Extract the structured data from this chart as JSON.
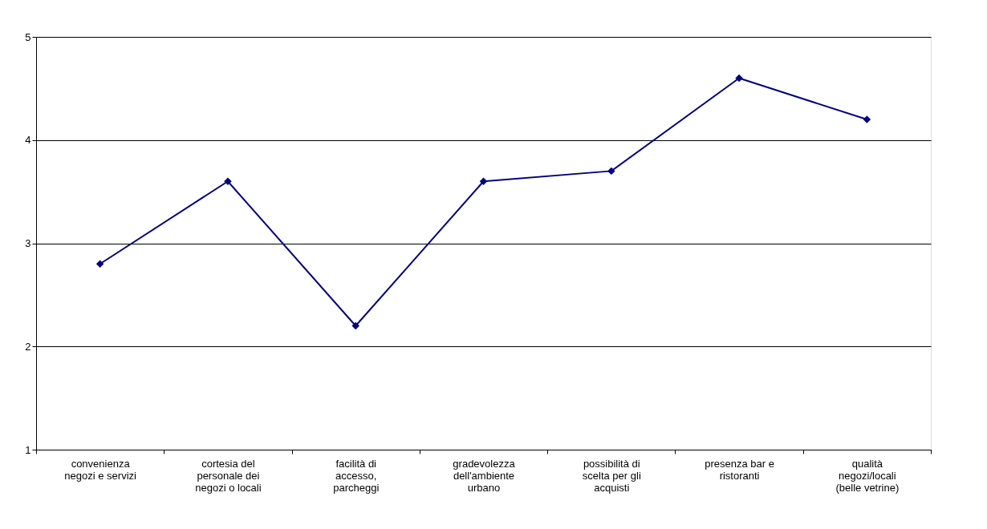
{
  "chart_data": {
    "type": "line",
    "categories": [
      "convenienza negozi e servizi",
      "cortesia del personale dei negozi o locali",
      "facilità di accesso, parcheggi",
      "gradevolezza dell'ambiente urbano",
      "possibilità di scelta per gli acquisti",
      "presenza bar e ristoranti",
      "qualità negozi/locali (belle vetrine)"
    ],
    "series": [
      {
        "color": "#000080",
        "values": [
          2.8,
          3.6,
          2.2,
          3.6,
          3.7,
          4.6,
          4.2
        ]
      }
    ],
    "ylim": [
      1,
      5
    ],
    "yticks": [
      1,
      2,
      3,
      4,
      5
    ],
    "grid": "y",
    "marker": "diamond",
    "line_style": "solid"
  }
}
